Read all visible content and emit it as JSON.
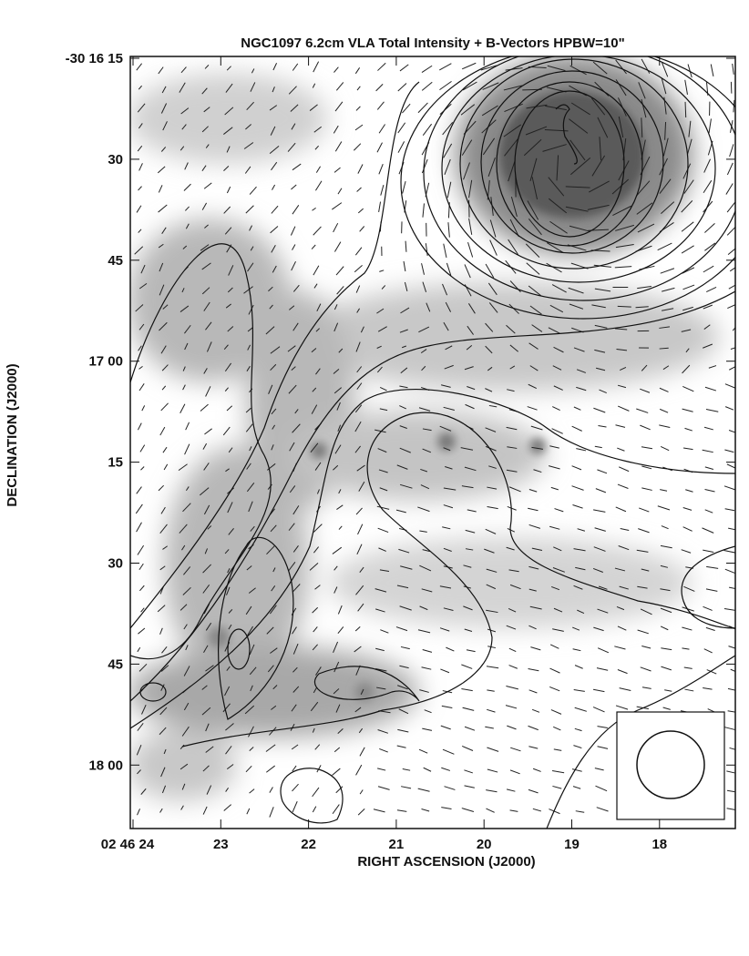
{
  "title": "NGC1097   6.2cm   VLA   Total Intensity + B-Vectors   HPBW=10\"",
  "x_axis": {
    "label": "RIGHT ASCENSION (J2000)",
    "ticks": [
      "02 46 24",
      "23",
      "22",
      "21",
      "20",
      "19",
      "18"
    ]
  },
  "y_axis": {
    "label": "DECLINATION (J2000)",
    "ticks": [
      "-30 16 15",
      "30",
      "45",
      "17 00",
      "15",
      "30",
      "45",
      "18 00"
    ]
  }
}
